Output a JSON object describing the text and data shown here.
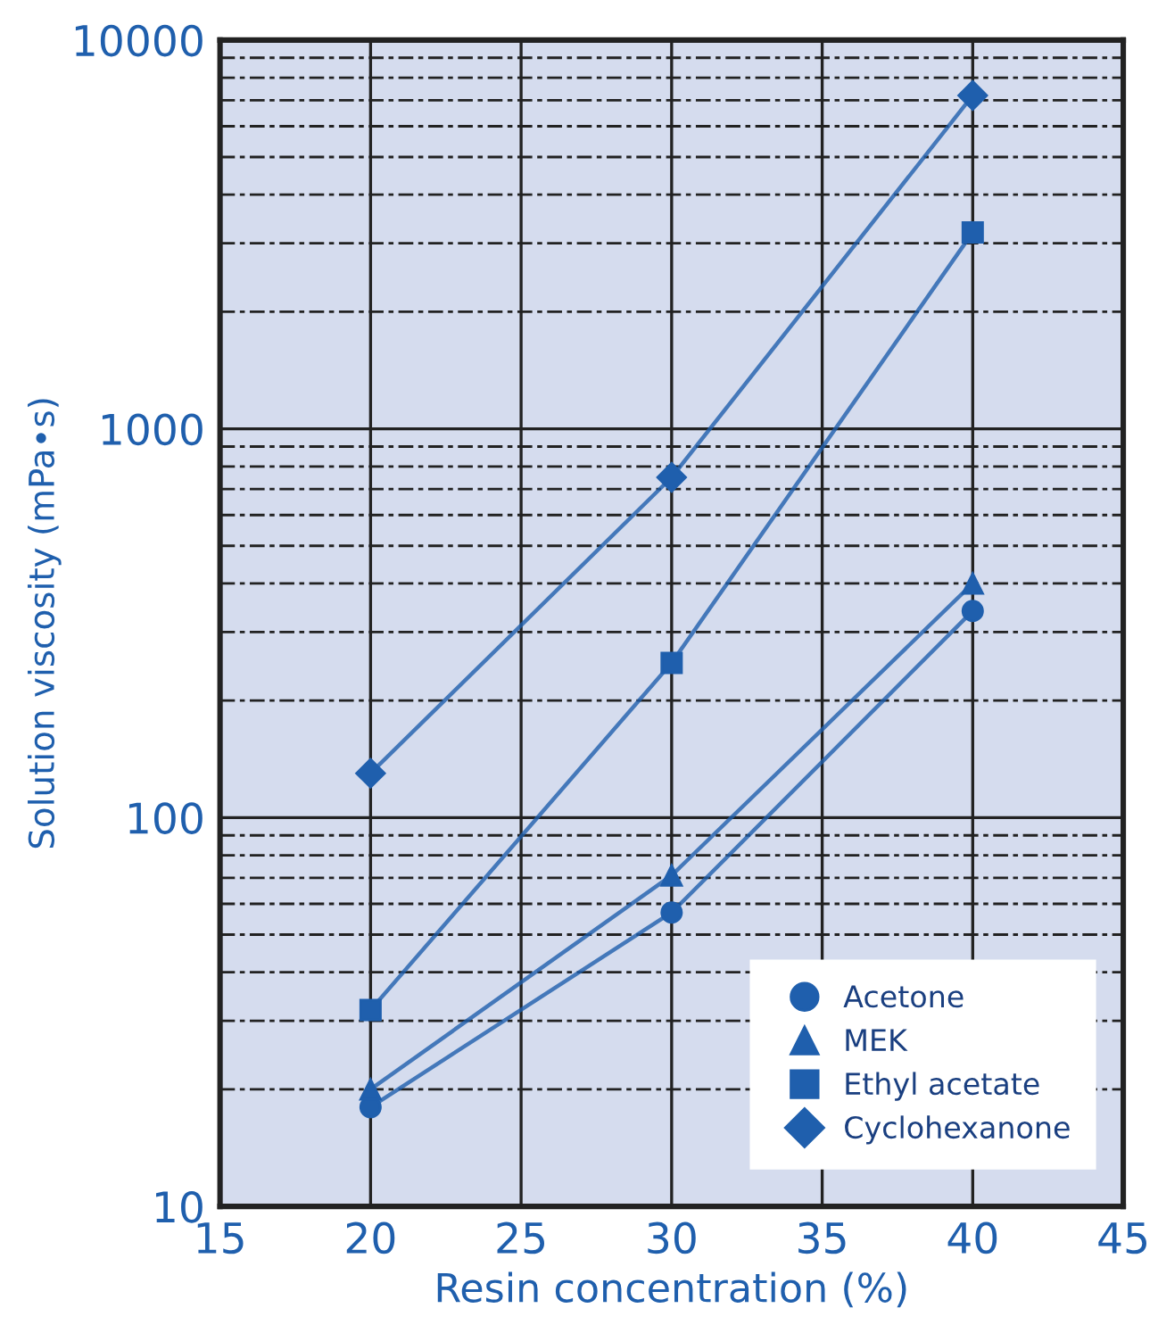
{
  "chart_data": {
    "type": "line",
    "xlabel": "Resin concentration (%)",
    "ylabel": "Solution viscosity (mPa•s)",
    "x": [
      20,
      30,
      40
    ],
    "series": [
      {
        "name": "Acetone",
        "color": "#1f5fad",
        "marker": "circle",
        "values": [
          18,
          57,
          340
        ]
      },
      {
        "name": "MEK",
        "color": "#1f5fad",
        "marker": "triangle",
        "values": [
          20,
          71,
          400
        ]
      },
      {
        "name": "Ethyl acetate",
        "color": "#1f5fad",
        "marker": "square",
        "values": [
          32,
          250,
          3200
        ]
      },
      {
        "name": "Cyclohexanone",
        "color": "#1f5fad",
        "marker": "diamond",
        "values": [
          130,
          750,
          7200
        ]
      }
    ],
    "log": "y",
    "xlim": [
      15,
      45
    ],
    "xticks": [
      15,
      20,
      25,
      30,
      35,
      40,
      45
    ],
    "ylim": [
      10,
      10000
    ],
    "yticks": [
      10,
      {
        "value": 20,
        "label": null
      },
      {
        "value": 30,
        "label": null
      },
      {
        "value": 40,
        "label": null
      },
      {
        "value": 50,
        "label": null
      },
      {
        "value": 60,
        "label": null
      },
      {
        "value": 70,
        "label": null
      },
      {
        "value": 80,
        "label": null
      },
      {
        "value": 90,
        "label": null
      },
      100,
      {
        "value": 200,
        "label": null
      },
      {
        "value": 300,
        "label": null
      },
      {
        "value": 400,
        "label": null
      },
      {
        "value": 500,
        "label": null
      },
      {
        "value": 600,
        "label": null
      },
      {
        "value": 700,
        "label": null
      },
      {
        "value": 800,
        "label": null
      },
      {
        "value": 900,
        "label": null
      },
      1000,
      {
        "value": 2000,
        "label": null
      },
      {
        "value": 3000,
        "label": null
      },
      {
        "value": 4000,
        "label": null
      },
      {
        "value": 5000,
        "label": null
      },
      {
        "value": 6000,
        "label": null
      },
      {
        "value": 7000,
        "label": null
      },
      {
        "value": 8000,
        "label": null
      },
      {
        "value": 9000,
        "label": null
      },
      10000
    ],
    "grid": true,
    "legend": "bottom right",
    "line_style": "solid"
  }
}
